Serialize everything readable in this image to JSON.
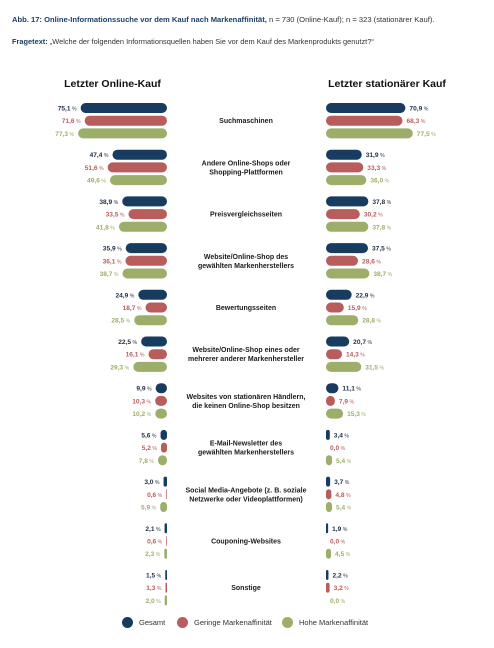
{
  "header": {
    "title": "Abb. 17: Online-Informationssuche vor dem Kauf nach Markenaffinität,",
    "note": "n = 730 (Online-Kauf); n = 323 (stationärer Kauf).",
    "question_label": "Fragetext:",
    "question": "„Welche der folgenden Informationsquellen haben Sie vor dem Kauf des Markenprodukts genutzt?“"
  },
  "colors": {
    "Gesamt": "#173c60",
    "Geringe Markenaffinität": "#b85c5c",
    "Hohe Markenaffinität": "#9cae6a"
  },
  "chart_data": {
    "type": "bar",
    "orientation": "horizontal",
    "unit": "%",
    "panels": [
      "Letzter Online-Kauf",
      "Letzter stationärer Kauf"
    ],
    "categories": [
      [
        "Suchmaschinen"
      ],
      [
        "Andere Online-Shops oder",
        "Shopping-Plattformen"
      ],
      [
        "Preisvergleichsseiten"
      ],
      [
        "Website/Online-Shop des",
        "gewählten Markenherstellers"
      ],
      [
        "Bewertungsseiten"
      ],
      [
        "Website/Online-Shop eines oder",
        "mehrerer anderer Markenhersteller"
      ],
      [
        "Websites von stationären Händlern,",
        "die keinen Online-Shop besitzen"
      ],
      [
        "E-Mail-Newsletter des",
        "gewählten Markenherstellers"
      ],
      [
        "Social Media-Angebote (z. B. soziale",
        "Netzwerke oder Videoplattformen)"
      ],
      [
        "Couponing-Websites"
      ],
      [
        "Sonstige"
      ]
    ],
    "series": [
      {
        "name": "Gesamt",
        "online": [
          75.1,
          47.4,
          38.9,
          35.9,
          24.9,
          22.5,
          9.9,
          5.6,
          3.0,
          2.1,
          1.5
        ],
        "stationary": [
          70.9,
          31.9,
          37.8,
          37.5,
          22.9,
          20.7,
          11.1,
          3.4,
          3.7,
          1.9,
          2.2
        ]
      },
      {
        "name": "Geringe Markenaffinität",
        "online": [
          71.6,
          51.6,
          33.5,
          36.1,
          18.7,
          16.1,
          10.3,
          5.2,
          0.6,
          0.6,
          1.3
        ],
        "stationary": [
          68.3,
          33.3,
          30.2,
          28.6,
          15.9,
          14.3,
          7.9,
          0.0,
          4.8,
          0.0,
          3.2
        ]
      },
      {
        "name": "Hohe Markenaffinität",
        "online": [
          77.3,
          49.6,
          41.8,
          38.7,
          28.5,
          29.3,
          10.2,
          7.8,
          5.9,
          2.3,
          2.0
        ],
        "stationary": [
          77.5,
          36.0,
          37.8,
          38.7,
          28.8,
          31.5,
          15.3,
          5.4,
          5.4,
          4.5,
          0.0
        ]
      }
    ],
    "legend_position": "bottom",
    "grid": false
  }
}
